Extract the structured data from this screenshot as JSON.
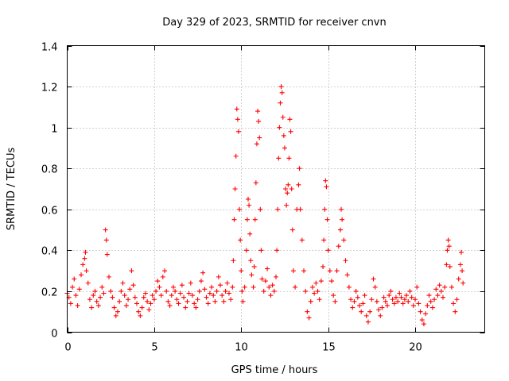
{
  "chart_data": {
    "type": "scatter",
    "title": "Day 329 of 2023, SRMTID for receiver cnvn",
    "xlabel": "GPS time / hours",
    "ylabel": "SRMTID / TECUs",
    "xlim": [
      0,
      24
    ],
    "ylim": [
      0,
      1.4
    ],
    "x_ticks": [
      0,
      5,
      10,
      15,
      20
    ],
    "x_tick_labels": [
      "0",
      "5",
      "10",
      "15",
      "20"
    ],
    "y_ticks": [
      0,
      0.2,
      0.4,
      0.6,
      0.8,
      1,
      1.2,
      1.4
    ],
    "y_tick_labels": [
      "0",
      "0.2",
      "0.4",
      "0.6",
      "0.8",
      "1",
      "1.2",
      "1.4"
    ],
    "grid": true,
    "marker": "+",
    "marker_color": "#ff0000",
    "series": [
      {
        "name": "SRMTID",
        "points": [
          [
            0.0,
            0.19
          ],
          [
            0.1,
            0.17
          ],
          [
            0.2,
            0.14
          ],
          [
            0.3,
            0.22
          ],
          [
            0.4,
            0.26
          ],
          [
            0.5,
            0.18
          ],
          [
            0.6,
            0.13
          ],
          [
            0.7,
            0.21
          ],
          [
            0.8,
            0.28
          ],
          [
            0.9,
            0.33
          ],
          [
            1.0,
            0.36
          ],
          [
            1.05,
            0.39
          ],
          [
            1.1,
            0.3
          ],
          [
            1.2,
            0.24
          ],
          [
            1.3,
            0.16
          ],
          [
            1.4,
            0.12
          ],
          [
            1.5,
            0.18
          ],
          [
            1.6,
            0.2
          ],
          [
            1.7,
            0.15
          ],
          [
            1.8,
            0.13
          ],
          [
            1.9,
            0.17
          ],
          [
            2.0,
            0.22
          ],
          [
            2.1,
            0.19
          ],
          [
            2.2,
            0.5
          ],
          [
            2.25,
            0.45
          ],
          [
            2.3,
            0.38
          ],
          [
            2.4,
            0.27
          ],
          [
            2.5,
            0.2
          ],
          [
            2.6,
            0.17
          ],
          [
            2.7,
            0.12
          ],
          [
            2.8,
            0.08
          ],
          [
            2.9,
            0.1
          ],
          [
            3.0,
            0.15
          ],
          [
            3.1,
            0.2
          ],
          [
            3.2,
            0.24
          ],
          [
            3.3,
            0.18
          ],
          [
            3.4,
            0.13
          ],
          [
            3.5,
            0.16
          ],
          [
            3.6,
            0.21
          ],
          [
            3.7,
            0.3
          ],
          [
            3.8,
            0.23
          ],
          [
            3.9,
            0.17
          ],
          [
            4.0,
            0.14
          ],
          [
            4.1,
            0.1
          ],
          [
            4.2,
            0.08
          ],
          [
            4.3,
            0.12
          ],
          [
            4.4,
            0.17
          ],
          [
            4.5,
            0.19
          ],
          [
            4.6,
            0.15
          ],
          [
            4.7,
            0.11
          ],
          [
            4.8,
            0.14
          ],
          [
            4.9,
            0.18
          ],
          [
            5.0,
            0.16
          ],
          [
            5.1,
            0.2
          ],
          [
            5.2,
            0.25
          ],
          [
            5.3,
            0.22
          ],
          [
            5.4,
            0.18
          ],
          [
            5.5,
            0.27
          ],
          [
            5.6,
            0.3
          ],
          [
            5.7,
            0.2
          ],
          [
            5.8,
            0.15
          ],
          [
            5.9,
            0.13
          ],
          [
            6.0,
            0.18
          ],
          [
            6.1,
            0.22
          ],
          [
            6.2,
            0.2
          ],
          [
            6.3,
            0.16
          ],
          [
            6.4,
            0.14
          ],
          [
            6.5,
            0.19
          ],
          [
            6.6,
            0.23
          ],
          [
            6.7,
            0.17
          ],
          [
            6.8,
            0.12
          ],
          [
            6.9,
            0.15
          ],
          [
            7.0,
            0.19
          ],
          [
            7.1,
            0.24
          ],
          [
            7.2,
            0.18
          ],
          [
            7.3,
            0.14
          ],
          [
            7.4,
            0.12
          ],
          [
            7.5,
            0.16
          ],
          [
            7.6,
            0.2
          ],
          [
            7.7,
            0.25
          ],
          [
            7.8,
            0.29
          ],
          [
            7.9,
            0.21
          ],
          [
            8.0,
            0.17
          ],
          [
            8.1,
            0.14
          ],
          [
            8.2,
            0.19
          ],
          [
            8.3,
            0.22
          ],
          [
            8.4,
            0.18
          ],
          [
            8.5,
            0.15
          ],
          [
            8.6,
            0.2
          ],
          [
            8.7,
            0.27
          ],
          [
            8.8,
            0.23
          ],
          [
            8.9,
            0.18
          ],
          [
            9.0,
            0.15
          ],
          [
            9.1,
            0.2
          ],
          [
            9.2,
            0.24
          ],
          [
            9.3,
            0.19
          ],
          [
            9.4,
            0.16
          ],
          [
            9.5,
            0.22
          ],
          [
            9.55,
            0.35
          ],
          [
            9.6,
            0.55
          ],
          [
            9.65,
            0.7
          ],
          [
            9.7,
            0.86
          ],
          [
            9.75,
            1.09
          ],
          [
            9.8,
            1.04
          ],
          [
            9.85,
            0.98
          ],
          [
            9.9,
            0.6
          ],
          [
            9.95,
            0.45
          ],
          [
            10.0,
            0.3
          ],
          [
            10.05,
            0.2
          ],
          [
            10.1,
            0.15
          ],
          [
            10.2,
            0.22
          ],
          [
            10.3,
            0.4
          ],
          [
            10.35,
            0.55
          ],
          [
            10.4,
            0.65
          ],
          [
            10.45,
            0.62
          ],
          [
            10.5,
            0.48
          ],
          [
            10.55,
            0.35
          ],
          [
            10.6,
            0.28
          ],
          [
            10.7,
            0.22
          ],
          [
            10.75,
            0.32
          ],
          [
            10.8,
            0.55
          ],
          [
            10.85,
            0.73
          ],
          [
            10.9,
            0.92
          ],
          [
            10.95,
            1.08
          ],
          [
            11.0,
            1.03
          ],
          [
            11.05,
            0.95
          ],
          [
            11.1,
            0.6
          ],
          [
            11.15,
            0.4
          ],
          [
            11.2,
            0.26
          ],
          [
            11.3,
            0.2
          ],
          [
            11.4,
            0.25
          ],
          [
            11.5,
            0.31
          ],
          [
            11.6,
            0.22
          ],
          [
            11.7,
            0.18
          ],
          [
            11.8,
            0.23
          ],
          [
            11.9,
            0.2
          ],
          [
            12.0,
            0.27
          ],
          [
            12.05,
            0.4
          ],
          [
            12.1,
            0.6
          ],
          [
            12.15,
            0.85
          ],
          [
            12.2,
            1.0
          ],
          [
            12.25,
            1.12
          ],
          [
            12.3,
            1.2
          ],
          [
            12.35,
            1.17
          ],
          [
            12.4,
            1.05
          ],
          [
            12.45,
            0.96
          ],
          [
            12.5,
            0.9
          ],
          [
            12.55,
            0.7
          ],
          [
            12.6,
            0.62
          ],
          [
            12.65,
            0.68
          ],
          [
            12.7,
            0.72
          ],
          [
            12.75,
            0.85
          ],
          [
            12.8,
            1.04
          ],
          [
            12.85,
            0.98
          ],
          [
            12.9,
            0.7
          ],
          [
            12.95,
            0.5
          ],
          [
            13.0,
            0.3
          ],
          [
            13.1,
            0.22
          ],
          [
            13.2,
            0.6
          ],
          [
            13.3,
            0.72
          ],
          [
            13.35,
            0.8
          ],
          [
            13.4,
            0.6
          ],
          [
            13.5,
            0.45
          ],
          [
            13.6,
            0.3
          ],
          [
            13.7,
            0.2
          ],
          [
            13.8,
            0.1
          ],
          [
            13.9,
            0.07
          ],
          [
            14.0,
            0.15
          ],
          [
            14.1,
            0.22
          ],
          [
            14.2,
            0.19
          ],
          [
            14.3,
            0.24
          ],
          [
            14.4,
            0.2
          ],
          [
            14.5,
            0.16
          ],
          [
            14.6,
            0.25
          ],
          [
            14.7,
            0.32
          ],
          [
            14.75,
            0.45
          ],
          [
            14.8,
            0.6
          ],
          [
            14.85,
            0.74
          ],
          [
            14.9,
            0.71
          ],
          [
            14.95,
            0.55
          ],
          [
            15.0,
            0.4
          ],
          [
            15.1,
            0.3
          ],
          [
            15.2,
            0.25
          ],
          [
            15.3,
            0.18
          ],
          [
            15.4,
            0.15
          ],
          [
            15.5,
            0.3
          ],
          [
            15.6,
            0.42
          ],
          [
            15.7,
            0.5
          ],
          [
            15.75,
            0.6
          ],
          [
            15.8,
            0.55
          ],
          [
            15.9,
            0.45
          ],
          [
            16.0,
            0.35
          ],
          [
            16.1,
            0.28
          ],
          [
            16.2,
            0.22
          ],
          [
            16.3,
            0.16
          ],
          [
            16.4,
            0.12
          ],
          [
            16.5,
            0.15
          ],
          [
            16.6,
            0.2
          ],
          [
            16.7,
            0.17
          ],
          [
            16.8,
            0.13
          ],
          [
            16.9,
            0.1
          ],
          [
            17.0,
            0.14
          ],
          [
            17.1,
            0.18
          ],
          [
            17.2,
            0.08
          ],
          [
            17.3,
            0.05
          ],
          [
            17.4,
            0.1
          ],
          [
            17.5,
            0.16
          ],
          [
            17.6,
            0.26
          ],
          [
            17.7,
            0.22
          ],
          [
            17.8,
            0.15
          ],
          [
            17.9,
            0.11
          ],
          [
            18.0,
            0.08
          ],
          [
            18.1,
            0.12
          ],
          [
            18.2,
            0.17
          ],
          [
            18.3,
            0.15
          ],
          [
            18.4,
            0.13
          ],
          [
            18.5,
            0.18
          ],
          [
            18.6,
            0.2
          ],
          [
            18.7,
            0.16
          ],
          [
            18.8,
            0.14
          ],
          [
            18.9,
            0.17
          ],
          [
            19.0,
            0.15
          ],
          [
            19.1,
            0.19
          ],
          [
            19.2,
            0.17
          ],
          [
            19.3,
            0.14
          ],
          [
            19.4,
            0.16
          ],
          [
            19.5,
            0.18
          ],
          [
            19.6,
            0.15
          ],
          [
            19.7,
            0.2
          ],
          [
            19.8,
            0.17
          ],
          [
            19.9,
            0.13
          ],
          [
            20.0,
            0.16
          ],
          [
            20.1,
            0.22
          ],
          [
            20.2,
            0.14
          ],
          [
            20.3,
            0.1
          ],
          [
            20.4,
            0.06
          ],
          [
            20.5,
            0.04
          ],
          [
            20.6,
            0.09
          ],
          [
            20.7,
            0.13
          ],
          [
            20.8,
            0.18
          ],
          [
            20.9,
            0.15
          ],
          [
            21.0,
            0.12
          ],
          [
            21.1,
            0.16
          ],
          [
            21.2,
            0.21
          ],
          [
            21.3,
            0.18
          ],
          [
            21.4,
            0.23
          ],
          [
            21.5,
            0.2
          ],
          [
            21.6,
            0.17
          ],
          [
            21.7,
            0.22
          ],
          [
            21.8,
            0.33
          ],
          [
            21.85,
            0.4
          ],
          [
            21.9,
            0.45
          ],
          [
            21.95,
            0.42
          ],
          [
            22.0,
            0.32
          ],
          [
            22.1,
            0.22
          ],
          [
            22.2,
            0.14
          ],
          [
            22.3,
            0.1
          ],
          [
            22.4,
            0.16
          ],
          [
            22.5,
            0.26
          ],
          [
            22.6,
            0.33
          ],
          [
            22.65,
            0.39
          ],
          [
            22.7,
            0.3
          ],
          [
            22.75,
            0.24
          ]
        ]
      }
    ]
  }
}
